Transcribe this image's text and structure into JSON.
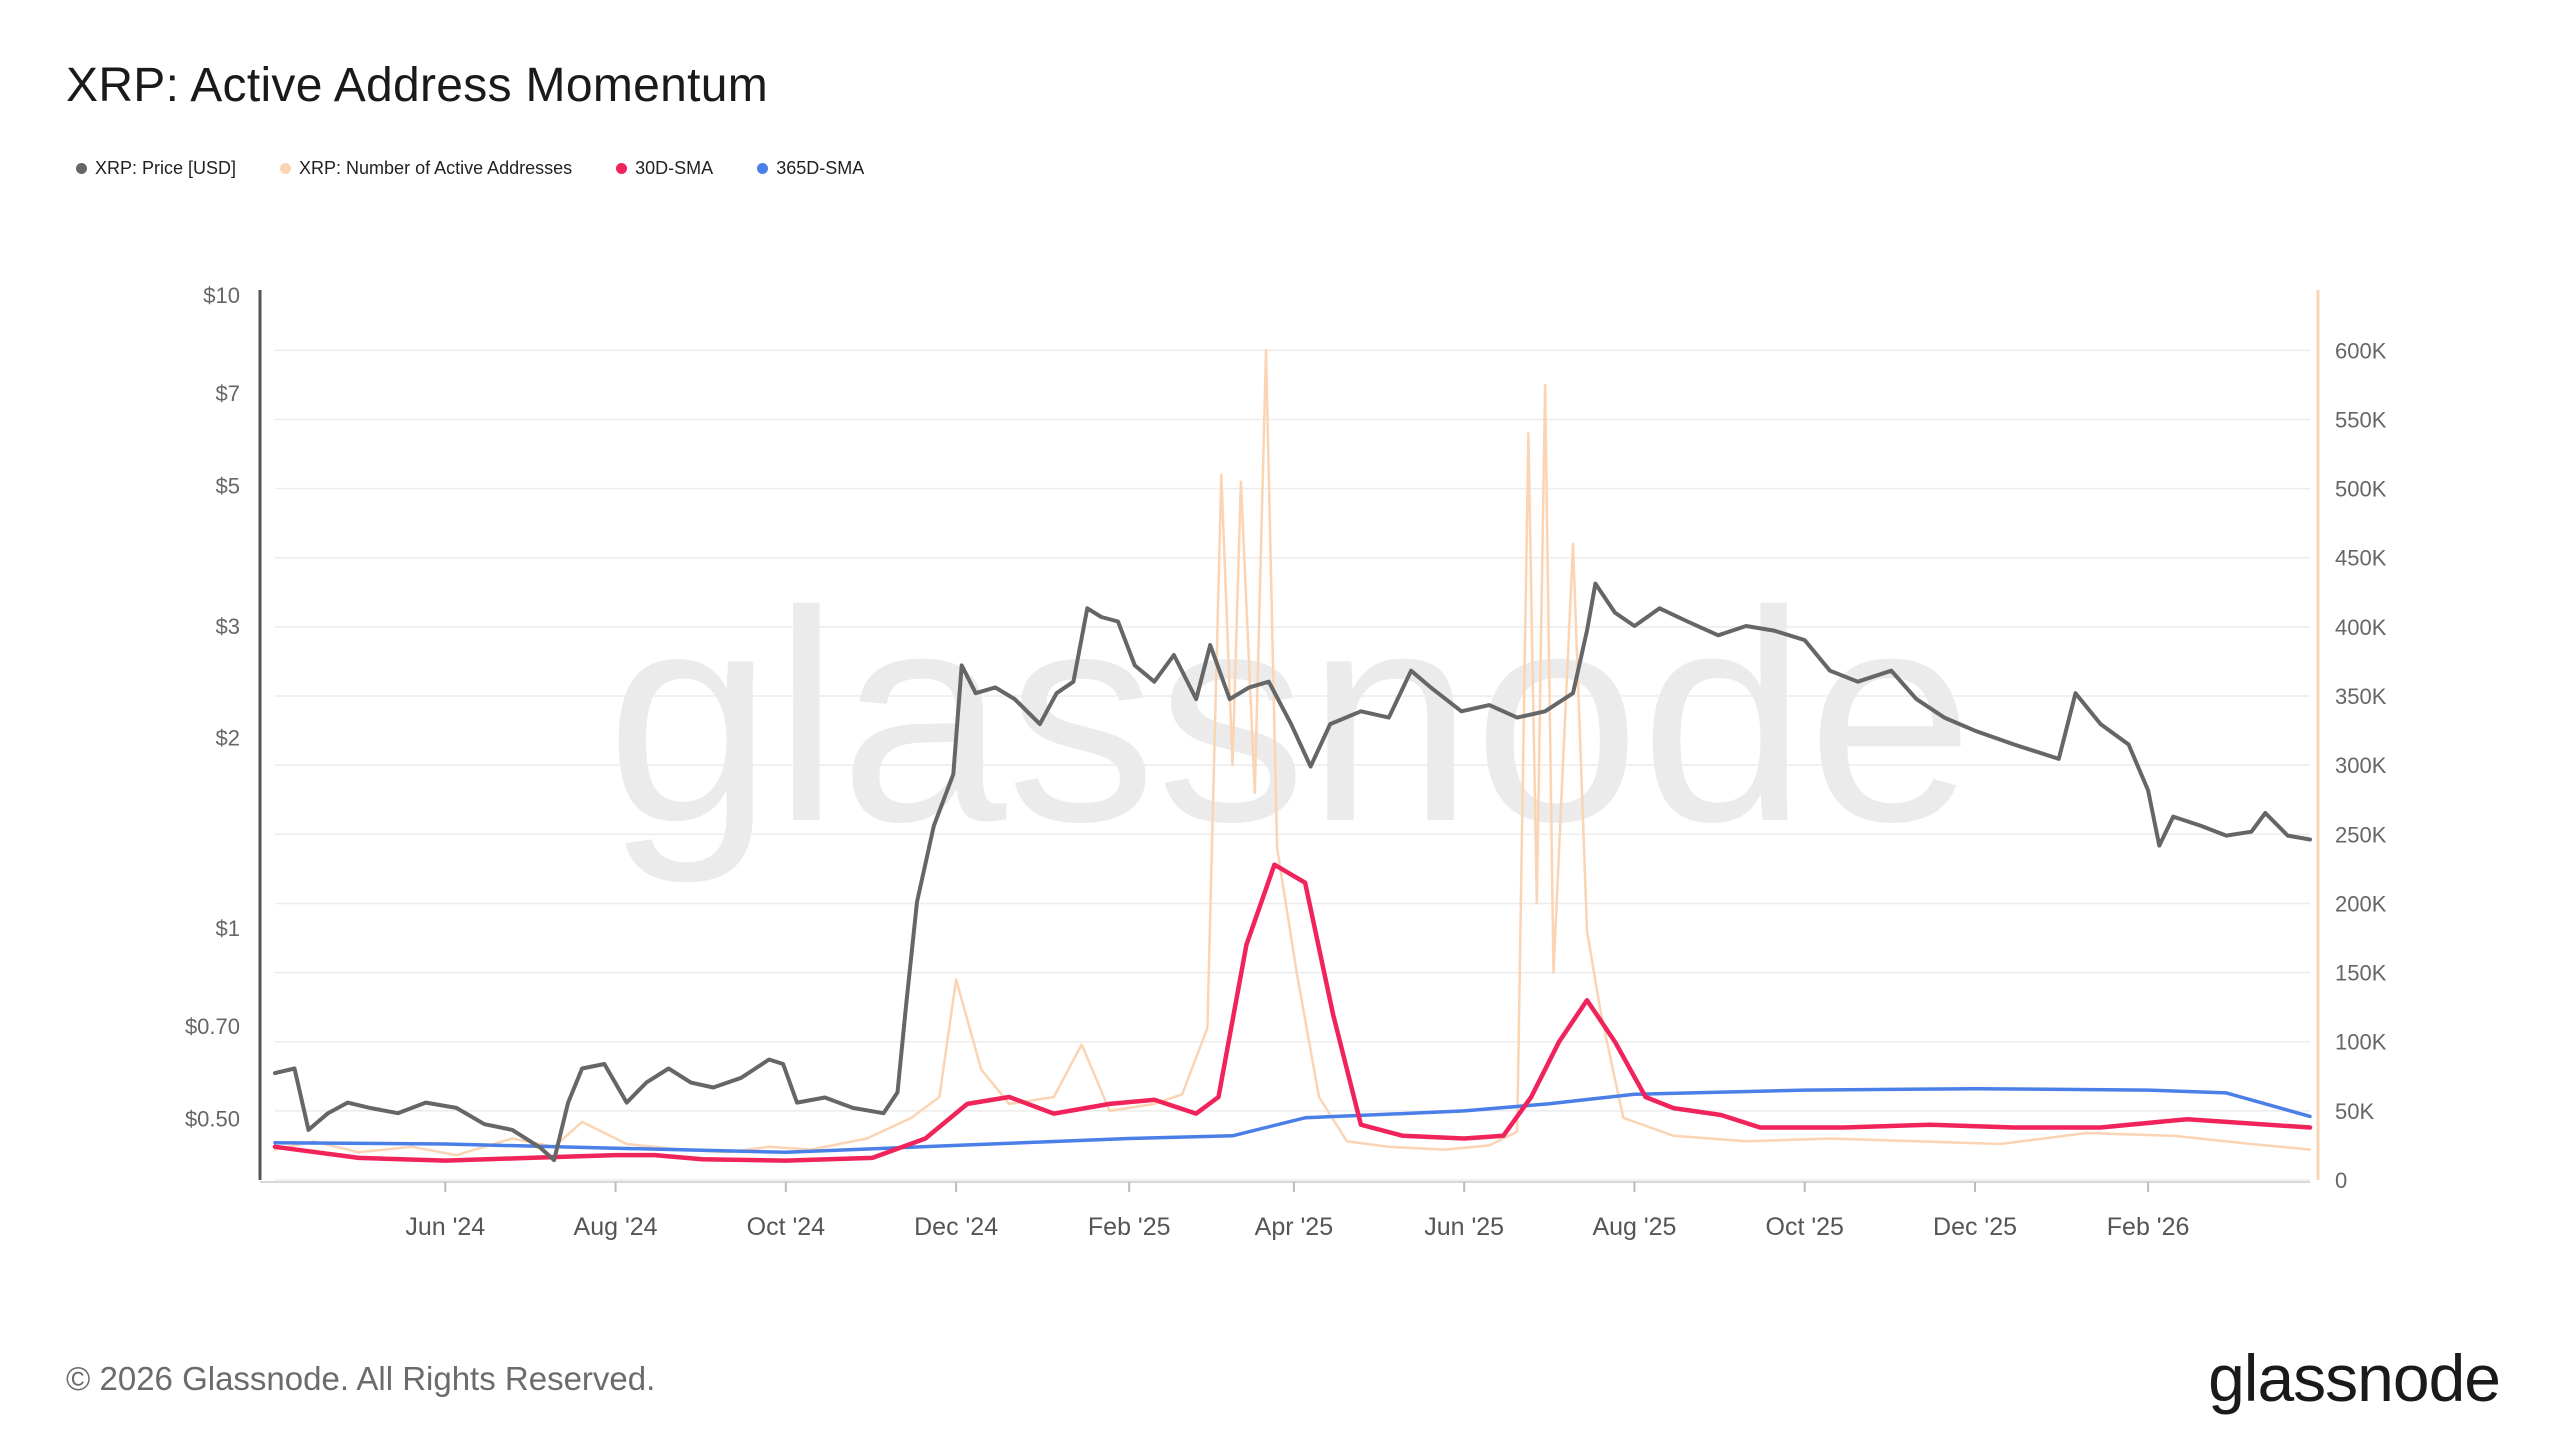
{
  "title": "XRP: Active Address Momentum",
  "legend": [
    {
      "label": "XRP: Price [USD]",
      "color": "#666666"
    },
    {
      "label": "XRP: Number of Active Addresses",
      "color": "#fbd4b4"
    },
    {
      "label": "30D-SMA",
      "color": "#f0245a"
    },
    {
      "label": "365D-SMA",
      "color": "#4a7fe8"
    }
  ],
  "watermark": "glassnode",
  "footer": {
    "copyright": "© 2026 Glassnode. All Rights Reserved.",
    "logo": "glassnode"
  },
  "chart_data": {
    "type": "line",
    "title": "XRP: Active Address Momentum",
    "x_axis": {
      "range": [
        "2024-04-01",
        "2026-03-31"
      ],
      "ticks": [
        "Jun '24",
        "Aug '24",
        "Oct '24",
        "Dec '24",
        "Feb '25",
        "Apr '25",
        "Jun '25",
        "Aug '25",
        "Oct '25",
        "Dec '25",
        "Feb '26"
      ],
      "tick_dates": [
        "2024-06-01",
        "2024-08-01",
        "2024-10-01",
        "2024-12-01",
        "2025-02-01",
        "2025-04-01",
        "2025-06-01",
        "2025-08-01",
        "2025-10-01",
        "2025-12-01",
        "2026-02-01"
      ]
    },
    "y_left": {
      "scale": "log",
      "range": [
        0.4,
        10
      ],
      "ticks": [
        10,
        7,
        5,
        3,
        2,
        1,
        0.7,
        0.5
      ],
      "tick_labels": [
        "$10",
        "$7",
        "$5",
        "$3",
        "$2",
        "$1",
        "$0.70",
        "$0.50"
      ]
    },
    "y_right": {
      "scale": "linear",
      "range": [
        0,
        640000
      ],
      "ticks": [
        0,
        50000,
        100000,
        150000,
        200000,
        250000,
        300000,
        350000,
        400000,
        450000,
        500000,
        550000,
        600000
      ],
      "tick_labels": [
        "0",
        "50K",
        "100K",
        "150K",
        "200K",
        "250K",
        "300K",
        "350K",
        "400K",
        "450K",
        "500K",
        "550K",
        "600K"
      ]
    },
    "series": [
      {
        "name": "XRP: Price [USD]",
        "axis": "left",
        "color": "#666666",
        "points": [
          [
            "2024-04-01",
            0.59
          ],
          [
            "2024-04-08",
            0.6
          ],
          [
            "2024-04-13",
            0.48
          ],
          [
            "2024-04-20",
            0.51
          ],
          [
            "2024-04-27",
            0.53
          ],
          [
            "2024-05-05",
            0.52
          ],
          [
            "2024-05-15",
            0.51
          ],
          [
            "2024-05-25",
            0.53
          ],
          [
            "2024-06-05",
            0.52
          ],
          [
            "2024-06-15",
            0.49
          ],
          [
            "2024-06-25",
            0.48
          ],
          [
            "2024-07-05",
            0.45
          ],
          [
            "2024-07-10",
            0.43
          ],
          [
            "2024-07-15",
            0.53
          ],
          [
            "2024-07-20",
            0.6
          ],
          [
            "2024-07-28",
            0.61
          ],
          [
            "2024-08-05",
            0.53
          ],
          [
            "2024-08-12",
            0.57
          ],
          [
            "2024-08-20",
            0.6
          ],
          [
            "2024-08-28",
            0.57
          ],
          [
            "2024-09-05",
            0.56
          ],
          [
            "2024-09-15",
            0.58
          ],
          [
            "2024-09-25",
            0.62
          ],
          [
            "2024-09-30",
            0.61
          ],
          [
            "2024-10-05",
            0.53
          ],
          [
            "2024-10-15",
            0.54
          ],
          [
            "2024-10-25",
            0.52
          ],
          [
            "2024-11-05",
            0.51
          ],
          [
            "2024-11-10",
            0.55
          ],
          [
            "2024-11-13",
            0.75
          ],
          [
            "2024-11-17",
            1.1
          ],
          [
            "2024-11-23",
            1.45
          ],
          [
            "2024-11-30",
            1.75
          ],
          [
            "2024-12-03",
            2.6
          ],
          [
            "2024-12-08",
            2.35
          ],
          [
            "2024-12-15",
            2.4
          ],
          [
            "2024-12-22",
            2.3
          ],
          [
            "2024-12-31",
            2.1
          ],
          [
            "2025-01-06",
            2.35
          ],
          [
            "2025-01-12",
            2.45
          ],
          [
            "2025-01-17",
            3.2
          ],
          [
            "2025-01-22",
            3.1
          ],
          [
            "2025-01-28",
            3.05
          ],
          [
            "2025-02-03",
            2.6
          ],
          [
            "2025-02-10",
            2.45
          ],
          [
            "2025-02-17",
            2.7
          ],
          [
            "2025-02-25",
            2.3
          ],
          [
            "2025-03-02",
            2.8
          ],
          [
            "2025-03-09",
            2.3
          ],
          [
            "2025-03-16",
            2.4
          ],
          [
            "2025-03-23",
            2.45
          ],
          [
            "2025-03-31",
            2.1
          ],
          [
            "2025-04-07",
            1.8
          ],
          [
            "2025-04-14",
            2.1
          ],
          [
            "2025-04-25",
            2.2
          ],
          [
            "2025-05-05",
            2.15
          ],
          [
            "2025-05-13",
            2.55
          ],
          [
            "2025-05-20",
            2.4
          ],
          [
            "2025-05-31",
            2.2
          ],
          [
            "2025-06-10",
            2.25
          ],
          [
            "2025-06-20",
            2.15
          ],
          [
            "2025-06-30",
            2.2
          ],
          [
            "2025-07-10",
            2.35
          ],
          [
            "2025-07-15",
            2.95
          ],
          [
            "2025-07-18",
            3.5
          ],
          [
            "2025-07-25",
            3.15
          ],
          [
            "2025-08-01",
            3.0
          ],
          [
            "2025-08-10",
            3.2
          ],
          [
            "2025-08-20",
            3.05
          ],
          [
            "2025-08-31",
            2.9
          ],
          [
            "2025-09-10",
            3.0
          ],
          [
            "2025-09-20",
            2.95
          ],
          [
            "2025-10-01",
            2.85
          ],
          [
            "2025-10-10",
            2.55
          ],
          [
            "2025-10-20",
            2.45
          ],
          [
            "2025-11-01",
            2.55
          ],
          [
            "2025-11-10",
            2.3
          ],
          [
            "2025-11-20",
            2.15
          ],
          [
            "2025-12-01",
            2.05
          ],
          [
            "2025-12-15",
            1.95
          ],
          [
            "2025-12-31",
            1.85
          ],
          [
            "2026-01-06",
            2.35
          ],
          [
            "2026-01-15",
            2.1
          ],
          [
            "2026-01-25",
            1.95
          ],
          [
            "2026-02-01",
            1.65
          ],
          [
            "2026-02-05",
            1.35
          ],
          [
            "2026-02-10",
            1.5
          ],
          [
            "2026-02-20",
            1.45
          ],
          [
            "2026-03-01",
            1.4
          ],
          [
            "2026-03-10",
            1.42
          ],
          [
            "2026-03-15",
            1.52
          ],
          [
            "2026-03-23",
            1.4
          ],
          [
            "2026-03-31",
            1.38
          ]
        ]
      },
      {
        "name": "XRP: Number of Active Addresses",
        "axis": "right",
        "color": "#fbd4b4",
        "points": [
          [
            "2024-04-01",
            22000
          ],
          [
            "2024-04-15",
            28000
          ],
          [
            "2024-05-01",
            20000
          ],
          [
            "2024-05-20",
            24000
          ],
          [
            "2024-06-05",
            18000
          ],
          [
            "2024-06-25",
            30000
          ],
          [
            "2024-07-10",
            24000
          ],
          [
            "2024-07-20",
            42000
          ],
          [
            "2024-08-05",
            26000
          ],
          [
            "2024-08-25",
            22000
          ],
          [
            "2024-09-10",
            20000
          ],
          [
            "2024-09-25",
            24000
          ],
          [
            "2024-10-10",
            22000
          ],
          [
            "2024-10-30",
            30000
          ],
          [
            "2024-11-15",
            45000
          ],
          [
            "2024-11-25",
            60000
          ],
          [
            "2024-12-01",
            145000
          ],
          [
            "2024-12-10",
            80000
          ],
          [
            "2024-12-20",
            55000
          ],
          [
            "2025-01-05",
            60000
          ],
          [
            "2025-01-15",
            98000
          ],
          [
            "2025-01-25",
            50000
          ],
          [
            "2025-02-10",
            55000
          ],
          [
            "2025-02-20",
            62000
          ],
          [
            "2025-03-01",
            110000
          ],
          [
            "2025-03-06",
            510000
          ],
          [
            "2025-03-10",
            300000
          ],
          [
            "2025-03-13",
            505000
          ],
          [
            "2025-03-18",
            280000
          ],
          [
            "2025-03-22",
            600000
          ],
          [
            "2025-03-26",
            240000
          ],
          [
            "2025-04-02",
            150000
          ],
          [
            "2025-04-10",
            60000
          ],
          [
            "2025-04-20",
            28000
          ],
          [
            "2025-05-05",
            24000
          ],
          [
            "2025-05-25",
            22000
          ],
          [
            "2025-06-10",
            25000
          ],
          [
            "2025-06-20",
            35000
          ],
          [
            "2025-06-24",
            540000
          ],
          [
            "2025-06-27",
            200000
          ],
          [
            "2025-06-30",
            575000
          ],
          [
            "2025-07-03",
            150000
          ],
          [
            "2025-07-10",
            460000
          ],
          [
            "2025-07-15",
            180000
          ],
          [
            "2025-07-20",
            120000
          ],
          [
            "2025-07-28",
            45000
          ],
          [
            "2025-08-15",
            32000
          ],
          [
            "2025-09-10",
            28000
          ],
          [
            "2025-10-10",
            30000
          ],
          [
            "2025-11-10",
            28000
          ],
          [
            "2025-12-10",
            26000
          ],
          [
            "2026-01-10",
            34000
          ],
          [
            "2026-02-10",
            32000
          ],
          [
            "2026-03-10",
            26000
          ],
          [
            "2026-03-31",
            22000
          ]
        ]
      },
      {
        "name": "30D-SMA",
        "axis": "right",
        "color": "#f0245a",
        "points": [
          [
            "2024-04-01",
            24000
          ],
          [
            "2024-05-01",
            16000
          ],
          [
            "2024-06-01",
            14000
          ],
          [
            "2024-07-01",
            16000
          ],
          [
            "2024-08-01",
            18000
          ],
          [
            "2024-08-15",
            18000
          ],
          [
            "2024-09-01",
            15000
          ],
          [
            "2024-10-01",
            14000
          ],
          [
            "2024-11-01",
            16000
          ],
          [
            "2024-11-20",
            30000
          ],
          [
            "2024-12-05",
            55000
          ],
          [
            "2024-12-20",
            60000
          ],
          [
            "2025-01-05",
            48000
          ],
          [
            "2025-01-25",
            55000
          ],
          [
            "2025-02-10",
            58000
          ],
          [
            "2025-02-25",
            48000
          ],
          [
            "2025-03-05",
            60000
          ],
          [
            "2025-03-15",
            170000
          ],
          [
            "2025-03-25",
            228000
          ],
          [
            "2025-04-05",
            215000
          ],
          [
            "2025-04-15",
            120000
          ],
          [
            "2025-04-25",
            40000
          ],
          [
            "2025-05-10",
            32000
          ],
          [
            "2025-06-01",
            30000
          ],
          [
            "2025-06-15",
            32000
          ],
          [
            "2025-06-25",
            60000
          ],
          [
            "2025-07-05",
            100000
          ],
          [
            "2025-07-15",
            130000
          ],
          [
            "2025-07-25",
            100000
          ],
          [
            "2025-08-05",
            60000
          ],
          [
            "2025-08-15",
            52000
          ],
          [
            "2025-09-01",
            47000
          ],
          [
            "2025-09-15",
            38000
          ],
          [
            "2025-10-15",
            38000
          ],
          [
            "2025-11-15",
            40000
          ],
          [
            "2025-12-15",
            38000
          ],
          [
            "2026-01-15",
            38000
          ],
          [
            "2026-02-15",
            44000
          ],
          [
            "2026-03-01",
            42000
          ],
          [
            "2026-03-31",
            38000
          ]
        ]
      },
      {
        "name": "365D-SMA",
        "axis": "right",
        "color": "#4a7fe8",
        "points": [
          [
            "2024-04-01",
            27000
          ],
          [
            "2024-06-01",
            26000
          ],
          [
            "2024-08-01",
            23000
          ],
          [
            "2024-10-01",
            20000
          ],
          [
            "2024-12-01",
            25000
          ],
          [
            "2025-02-01",
            30000
          ],
          [
            "2025-03-10",
            32000
          ],
          [
            "2025-04-05",
            45000
          ],
          [
            "2025-06-01",
            50000
          ],
          [
            "2025-07-01",
            55000
          ],
          [
            "2025-08-01",
            62000
          ],
          [
            "2025-10-01",
            65000
          ],
          [
            "2025-12-01",
            66000
          ],
          [
            "2026-02-01",
            65000
          ],
          [
            "2026-03-01",
            63000
          ],
          [
            "2026-03-31",
            46000
          ]
        ]
      }
    ]
  }
}
